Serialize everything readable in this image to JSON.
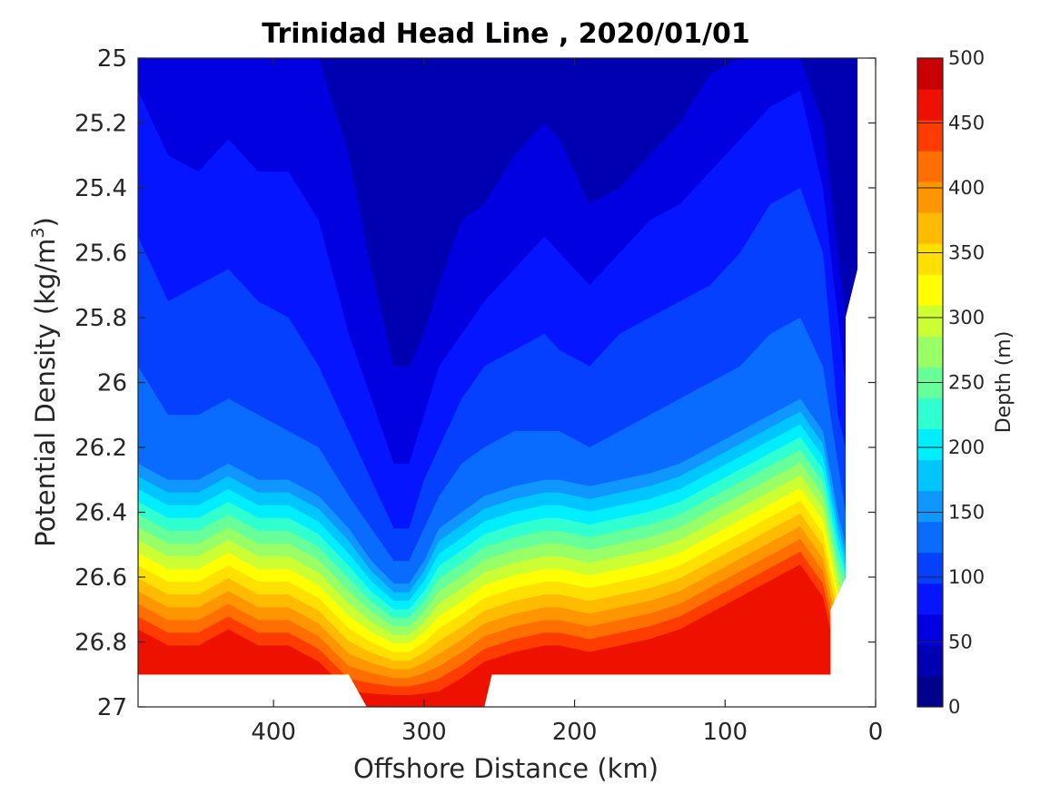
{
  "chart_data": {
    "type": "contourf",
    "title": "Trinidad Head Line , 2020/01/01",
    "xlabel": "Offshore Distance (km)",
    "ylabel_main": "Potential Density (kg/m",
    "ylabel_sup": "3",
    "ylabel_end": ")",
    "xlim": [
      490,
      0
    ],
    "ylim": [
      25,
      27
    ],
    "x_reversed": true,
    "y_reversed": true,
    "xticks": [
      400,
      300,
      200,
      100,
      0
    ],
    "xtick_labels": [
      "400",
      "300",
      "200",
      "100",
      "0"
    ],
    "yticks": [
      25,
      25.2,
      25.4,
      25.6,
      25.8,
      26,
      26.2,
      26.4,
      26.6,
      26.8,
      27
    ],
    "ytick_labels": [
      "25",
      "25.2",
      "25.4",
      "25.6",
      "25.8",
      "26",
      "26.2",
      "26.4",
      "26.6",
      "26.8",
      "27"
    ],
    "colorbar": {
      "label": "Depth (m)",
      "range": [
        0,
        500
      ],
      "ticks": [
        0,
        50,
        100,
        150,
        200,
        250,
        300,
        350,
        400,
        450,
        500
      ],
      "tick_labels": [
        "0",
        "50",
        "100",
        "150",
        "200",
        "250",
        "300",
        "350",
        "400",
        "450",
        "500"
      ],
      "colormap": "jet",
      "level_step": 25,
      "colors": [
        "#00008f",
        "#0000b3",
        "#0000e0",
        "#0515ff",
        "#0540ff",
        "#0a6cff",
        "#0f97ff",
        "#00c6ff",
        "#00eeff",
        "#30ffd0",
        "#66ff99",
        "#99ff66",
        "#ccff33",
        "#ffff00",
        "#ffe000",
        "#ffbb00",
        "#ff9600",
        "#ff6f00",
        "#ff3c00",
        "#ee1100",
        "#c90000"
      ]
    },
    "contour_levels_m": [
      0,
      25,
      50,
      75,
      100,
      125,
      150,
      175,
      200,
      225,
      250,
      275,
      300,
      325,
      350,
      375,
      400,
      425,
      450,
      475
    ],
    "contour_lines": {
      "x_km": [
        490,
        470,
        450,
        430,
        410,
        390,
        370,
        350,
        335,
        320,
        310,
        300,
        290,
        275,
        260,
        240,
        220,
        210,
        190,
        170,
        150,
        130,
        110,
        90,
        70,
        50,
        35,
        25,
        20
      ],
      "isopycnal_sigma_at_depth": [
        {
          "depth_m": 25,
          "sigma": [
            null,
            null,
            null,
            null,
            null,
            null,
            null,
            25.05,
            25.2,
            25.55,
            25.5,
            25.4,
            25.25,
            25.15,
            25.22,
            25.2,
            25.1,
            25.02,
            25.05,
            25.15,
            25.08,
            25.02,
            null,
            null,
            null,
            null,
            null,
            null,
            25.2
          ]
        },
        {
          "depth_m": 50,
          "sigma": [
            25.0,
            25.0,
            25.0,
            25.0,
            25.0,
            25.0,
            25.0,
            25.3,
            25.65,
            25.95,
            25.95,
            25.85,
            25.7,
            25.5,
            25.45,
            25.3,
            25.2,
            25.25,
            25.45,
            25.4,
            25.3,
            25.2,
            25.05,
            25.0,
            25.0,
            25.0,
            25.2,
            25.6,
            25.8
          ]
        },
        {
          "depth_m": 75,
          "sigma": [
            25.1,
            25.3,
            25.35,
            25.25,
            25.35,
            25.35,
            25.5,
            25.85,
            26.05,
            26.25,
            26.25,
            26.1,
            25.95,
            25.85,
            25.75,
            25.65,
            25.55,
            25.6,
            25.7,
            25.6,
            25.5,
            25.45,
            25.35,
            25.25,
            25.15,
            25.1,
            25.4,
            25.8,
            26.0
          ]
        },
        {
          "depth_m": 100,
          "sigma": [
            25.55,
            25.75,
            25.7,
            25.65,
            25.75,
            25.8,
            25.95,
            26.15,
            26.3,
            26.45,
            26.45,
            26.3,
            26.2,
            26.05,
            25.95,
            25.9,
            25.85,
            25.9,
            25.95,
            25.85,
            25.8,
            25.75,
            25.7,
            25.6,
            25.45,
            25.4,
            25.6,
            26.1,
            26.2
          ]
        },
        {
          "depth_m": 125,
          "sigma": [
            25.95,
            26.1,
            26.1,
            26.05,
            26.1,
            26.15,
            26.2,
            26.35,
            26.45,
            26.55,
            26.55,
            26.45,
            26.35,
            26.25,
            26.2,
            26.15,
            26.15,
            26.15,
            26.2,
            26.15,
            26.1,
            26.05,
            26.0,
            25.95,
            25.85,
            25.8,
            25.95,
            26.25,
            26.4
          ]
        },
        {
          "depth_m": 150,
          "sigma": [
            26.25,
            26.3,
            26.3,
            26.25,
            26.3,
            26.3,
            26.35,
            26.45,
            26.55,
            26.62,
            26.62,
            26.55,
            26.45,
            26.4,
            26.35,
            26.32,
            26.3,
            26.3,
            26.32,
            26.3,
            26.28,
            26.25,
            26.2,
            26.15,
            26.1,
            26.05,
            26.15,
            26.4,
            26.5
          ]
        }
      ],
      "bottom_edge_sigma": 26.9,
      "bottom_edge_deep_segment_km": [
        350,
        255
      ]
    }
  }
}
